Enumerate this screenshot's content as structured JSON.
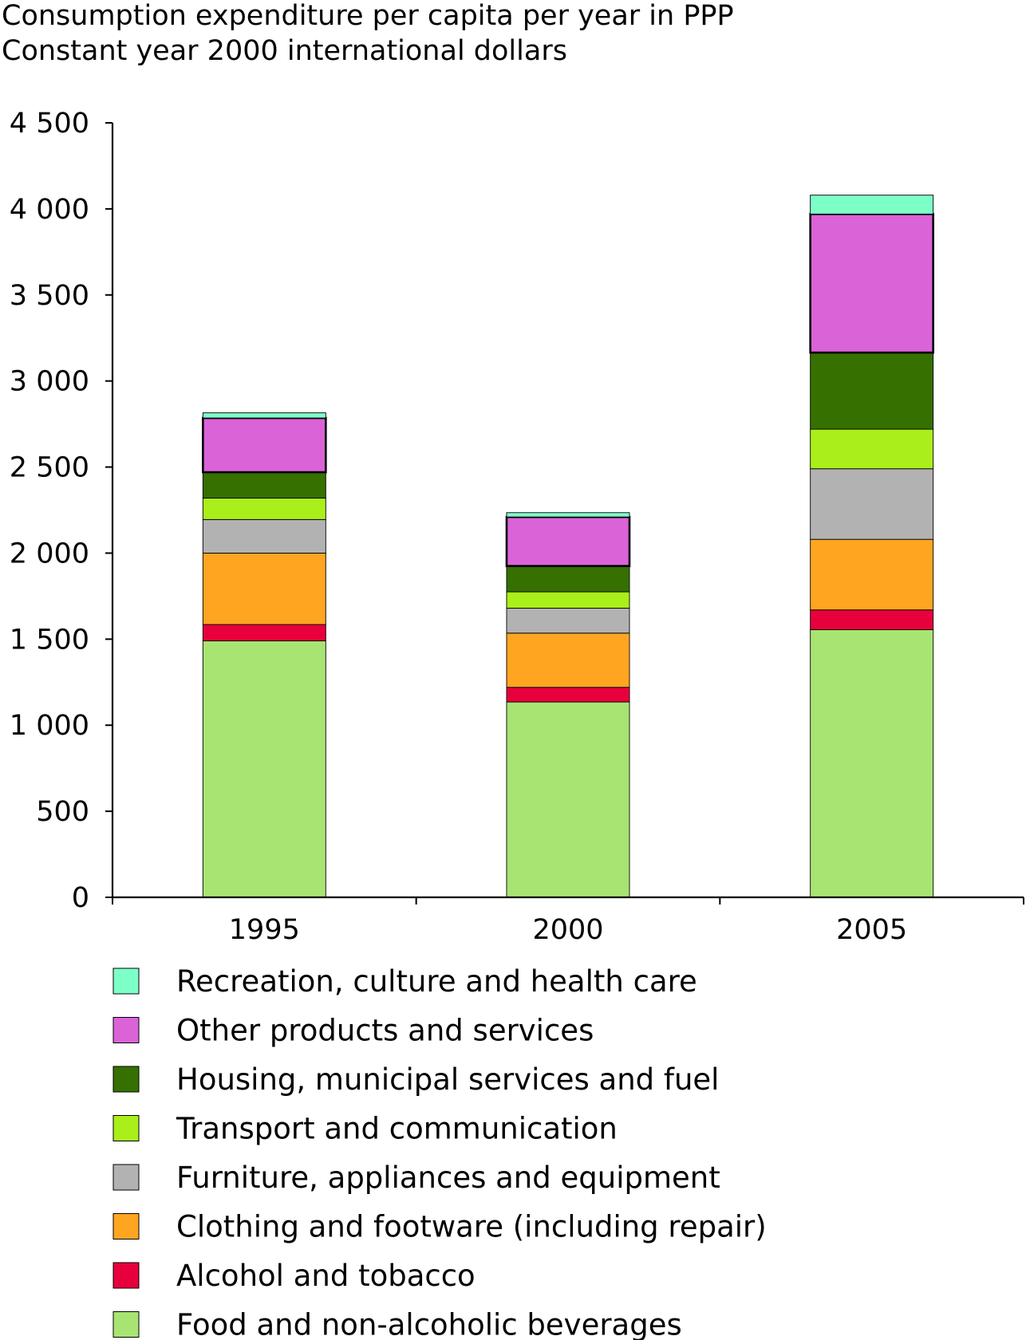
{
  "chart_data": {
    "type": "bar",
    "stacked": true,
    "ylabel_lines": [
      "Consumption expenditure per capita per year in PPP",
      "Constant year 2000 international dollars"
    ],
    "categories": [
      "1995",
      "2000",
      "2005"
    ],
    "ylim": [
      0,
      4500
    ],
    "yticks": [
      0,
      500,
      1000,
      1500,
      2000,
      2500,
      3000,
      3500,
      4000,
      4500
    ],
    "ytick_labels": [
      "0",
      "500",
      "1 000",
      "1 500",
      "2 000",
      "2 500",
      "3 000",
      "3 500",
      "4 000",
      "4 500"
    ],
    "grid": false,
    "legend_position": "bottom",
    "series": [
      {
        "name": "Food and non-alcoholic beverages",
        "color": "#a8e472",
        "values": [
          1490,
          1135,
          1555
        ]
      },
      {
        "name": "Alcohol and tobacco",
        "color": "#e8003c",
        "values": [
          95,
          85,
          115
        ]
      },
      {
        "name": "Clothing and footware (including repair)",
        "color": "#ffa520",
        "values": [
          415,
          315,
          410
        ]
      },
      {
        "name": "Furniture, appliances and equipment",
        "color": "#b2b2b2",
        "values": [
          195,
          145,
          410
        ]
      },
      {
        "name": "Transport and communication",
        "color": "#aaee1a",
        "values": [
          125,
          95,
          230
        ]
      },
      {
        "name": "Housing, municipal services and fuel",
        "color": "#357000",
        "values": [
          150,
          150,
          445
        ]
      },
      {
        "name": "Other products and services",
        "color": "#db63d8",
        "values": [
          315,
          285,
          805
        ]
      },
      {
        "name": "Recreation, culture and health care",
        "color": "#7dffc8",
        "values": [
          30,
          25,
          110
        ]
      }
    ]
  }
}
